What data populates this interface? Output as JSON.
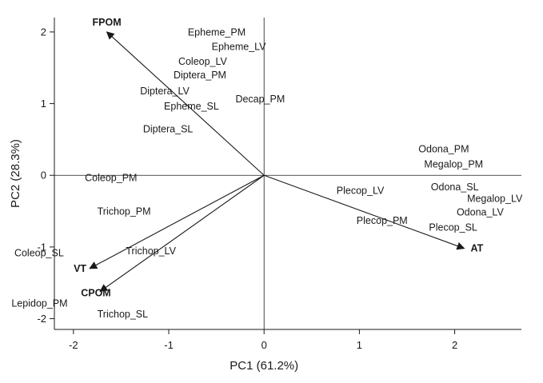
{
  "chart_data": {
    "type": "scatter",
    "subtype": "pca-biplot",
    "title": "",
    "xlabel": "PC1 (61.2%)",
    "ylabel": "PC2 (28.3%)",
    "xlim": [
      -2.2,
      2.7
    ],
    "ylim": [
      -2.15,
      2.2
    ],
    "xticks": [
      -2,
      -1,
      0,
      1,
      2
    ],
    "xtick_labels": [
      "-2",
      "-1",
      "0",
      "1",
      "2"
    ],
    "yticks": [
      -2,
      -1,
      0,
      1,
      2
    ],
    "ytick_labels": [
      "-2",
      "-1",
      "0",
      "1",
      "2"
    ],
    "grid": false,
    "reference_lines": [
      "x=0",
      "y=0"
    ],
    "colors": {
      "ink": "#1a1a1a",
      "background": "#ffffff"
    },
    "points": [
      {
        "label": "Epheme_PM",
        "x": -0.8,
        "y": 1.95
      },
      {
        "label": "Epheme_LV",
        "x": -0.55,
        "y": 1.75
      },
      {
        "label": "Coleop_LV",
        "x": -0.9,
        "y": 1.54
      },
      {
        "label": "Diptera_PM",
        "x": -0.95,
        "y": 1.35
      },
      {
        "label": "Diptera_LV",
        "x": -1.3,
        "y": 1.13
      },
      {
        "label": "Epheme_SL",
        "x": -1.05,
        "y": 0.92
      },
      {
        "label": "Decap_PM",
        "x": -0.3,
        "y": 1.02
      },
      {
        "label": "Diptera_SL",
        "x": -1.27,
        "y": 0.6
      },
      {
        "label": "Coleop_PM",
        "x": -1.88,
        "y": -0.08
      },
      {
        "label": "Trichop_PM",
        "x": -1.75,
        "y": -0.55
      },
      {
        "label": "Trichop_LV",
        "x": -1.45,
        "y": -1.1
      },
      {
        "label": "Coleop_SL",
        "x": -2.62,
        "y": -1.13
      },
      {
        "label": "Lepidop_PM",
        "x": -2.65,
        "y": -1.83
      },
      {
        "label": "Trichop_SL",
        "x": -1.75,
        "y": -1.98
      },
      {
        "label": "Odona_PM",
        "x": 1.62,
        "y": 0.32
      },
      {
        "label": "Megalop_PM",
        "x": 1.68,
        "y": 0.11
      },
      {
        "label": "Plecop_LV",
        "x": 0.76,
        "y": -0.26
      },
      {
        "label": "Odona_SL",
        "x": 1.75,
        "y": -0.21
      },
      {
        "label": "Megalop_LV",
        "x": 2.13,
        "y": -0.37
      },
      {
        "label": "Odona_LV",
        "x": 2.02,
        "y": -0.56
      },
      {
        "label": "Plecop_PM",
        "x": 0.97,
        "y": -0.68
      },
      {
        "label": "Plecop_SL",
        "x": 1.73,
        "y": -0.77
      }
    ],
    "vectors": [
      {
        "label": "FPOM",
        "x": -1.65,
        "y": 2.0
      },
      {
        "label": "AT",
        "x": 2.1,
        "y": -1.02
      },
      {
        "label": "VT",
        "x": -1.83,
        "y": -1.3
      },
      {
        "label": "CPOM",
        "x": -1.72,
        "y": -1.62
      }
    ]
  }
}
